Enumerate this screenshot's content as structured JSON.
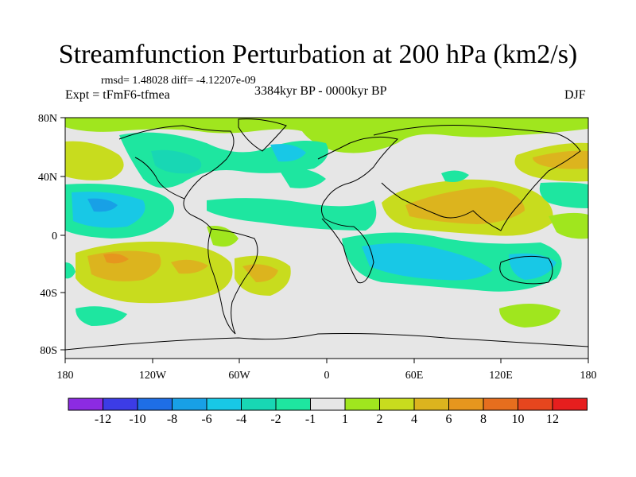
{
  "title": "Streamfunction Perturbation at 200 hPa (km2/s)",
  "stats": "rmsd= 1.48028 diff= -4.12207e-09",
  "experiment": "Expt = tFmF6-tfmea",
  "period": "3384kyr BP - 0000kyr BP",
  "season": "DJF",
  "colors": {
    "ocean_bg": "#e6e6e6",
    "neg12": "#8c2be2",
    "neg10": "#3c3ce6",
    "neg8": "#1e6ee6",
    "neg6": "#18a0e6",
    "neg4": "#18c8e6",
    "neg2": "#18d7b4",
    "neg1": "#1ee6a0",
    "zero": "#e6e6e6",
    "pos1": "#a0e61e",
    "pos2": "#c8dc1e",
    "pos4": "#dcb41e",
    "pos6": "#e6961e",
    "pos8": "#e66e1e",
    "pos10": "#e6461e",
    "pos12": "#e61e1e"
  },
  "map": {
    "lat_ticks": [
      "80N",
      "40N",
      "0",
      "40S",
      "80S"
    ],
    "lon_ticks": [
      "180",
      "120W",
      "60W",
      "0",
      "60E",
      "120E",
      "180"
    ]
  },
  "colorbar": {
    "labels": [
      "-12",
      "-10",
      "-8",
      "-6",
      "-4",
      "-2",
      "-1",
      "1",
      "2",
      "4",
      "6",
      "8",
      "10",
      "12"
    ]
  }
}
